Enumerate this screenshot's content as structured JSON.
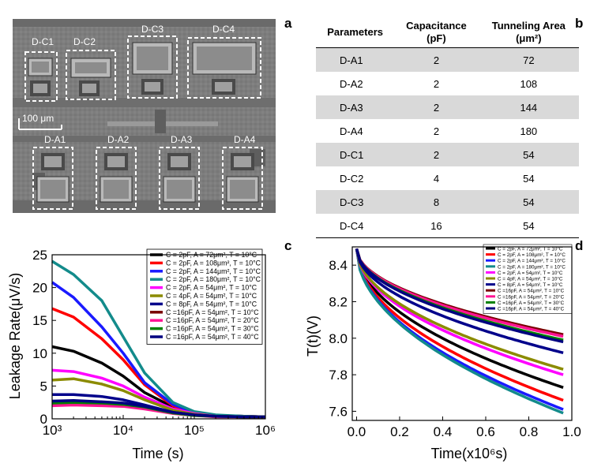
{
  "panels": {
    "a": "a",
    "b": "b",
    "c": "c",
    "d": "d"
  },
  "micrograph": {
    "scale_bar": "100 μm",
    "top_devices": [
      "D-C1",
      "D-C2",
      "D-C3",
      "D-C4"
    ],
    "bottom_devices": [
      "D-A1",
      "D-A2",
      "D-A3",
      "D-A4"
    ]
  },
  "table": {
    "headers": {
      "param": "Parameters",
      "cap_l1": "Capacitance",
      "cap_l2": "(pF)",
      "area_l1": "Tunneling Area",
      "area_l2": "(μm²)"
    },
    "rows": [
      [
        "D-A1",
        "2",
        "72"
      ],
      [
        "D-A2",
        "2",
        "108"
      ],
      [
        "D-A3",
        "2",
        "144"
      ],
      [
        "D-A4",
        "2",
        "180"
      ],
      [
        "D-C1",
        "2",
        "54"
      ],
      [
        "D-C2",
        "4",
        "54"
      ],
      [
        "D-C3",
        "8",
        "54"
      ],
      [
        "D-C4",
        "16",
        "54"
      ]
    ]
  },
  "series_meta": [
    {
      "label": "C = 2pF, A = 72μm², T = 10°C",
      "color": "#000000"
    },
    {
      "label": "C = 2pF, A = 108μm², T = 10°C",
      "color": "#ff0000"
    },
    {
      "label": "C = 2pF, A = 144μm², T = 10°C",
      "color": "#1a1aff"
    },
    {
      "label": "C = 2pF, A = 180μm², T = 10°C",
      "color": "#138b8b"
    },
    {
      "label": "C = 2pF, A = 54μm², T = 10°C",
      "color": "#ff00ff"
    },
    {
      "label": "C = 4pF, A = 54μm², T = 10°C",
      "color": "#8b8b00"
    },
    {
      "label": "C = 8pF, A = 54μm², T = 10°C",
      "color": "#00008b"
    },
    {
      "label": "C =16pF, A = 54μm², T = 10°C",
      "color": "#7a0000"
    },
    {
      "label": "C =16pF, A = 54μm², T = 20°C",
      "color": "#ff1493"
    },
    {
      "label": "C =16pF, A = 54μm², T = 30°C",
      "color": "#008000"
    },
    {
      "label": "C =16pF, A = 54μm², T = 40°C",
      "color": "#000080"
    }
  ],
  "chart_data": [
    {
      "type": "line",
      "title": "",
      "xlabel": "Time (s)",
      "ylabel": "Leakage Rate(μV/s)",
      "xscale": "log",
      "xlim": [
        1000,
        1000000
      ],
      "ylim": [
        0,
        25
      ],
      "xticks": [
        "10³",
        "10⁴",
        "10⁵",
        "10⁶"
      ],
      "yticks": [
        0,
        5,
        10,
        15,
        20,
        25
      ],
      "legend": "top-right",
      "x": [
        1000,
        2000,
        5000,
        10000,
        20000,
        50000,
        100000,
        200000,
        500000,
        1000000
      ],
      "series": [
        {
          "name": "C = 2pF, A = 72μm², T = 10°C",
          "values": [
            11,
            10.3,
            8.5,
            6.5,
            4.0,
            1.8,
            0.9,
            0.5,
            0.4,
            0.3
          ]
        },
        {
          "name": "C = 2pF, A = 108μm², T = 10°C",
          "values": [
            16.8,
            15.5,
            12.2,
            9.0,
            5.2,
            2.0,
            1.0,
            0.5,
            0.4,
            0.3
          ]
        },
        {
          "name": "C = 2pF, A = 144μm², T = 10°C",
          "values": [
            20.8,
            18.5,
            14.0,
            10.0,
            5.5,
            2.2,
            1.0,
            0.5,
            0.4,
            0.3
          ]
        },
        {
          "name": "C = 2pF, A = 180μm², T = 10°C",
          "values": [
            24.0,
            22.0,
            18.0,
            12.5,
            7.0,
            2.5,
            1.1,
            0.6,
            0.4,
            0.3
          ]
        },
        {
          "name": "C = 2pF, A = 54μm², T = 10°C",
          "values": [
            7.4,
            7.2,
            6.2,
            5.0,
            3.3,
            1.5,
            0.8,
            0.4,
            0.3,
            0.3
          ]
        },
        {
          "name": "C = 4pF, A = 54μm², T = 10°C",
          "values": [
            5.9,
            6.1,
            5.3,
            4.3,
            2.9,
            1.3,
            0.7,
            0.4,
            0.3,
            0.3
          ]
        },
        {
          "name": "C = 8pF, A = 54μm², T = 10°C",
          "values": [
            3.7,
            3.7,
            3.4,
            2.9,
            2.1,
            1.0,
            0.6,
            0.4,
            0.3,
            0.3
          ]
        },
        {
          "name": "C =16pF, A = 54μm², T = 10°C",
          "values": [
            2.2,
            2.4,
            2.3,
            2.1,
            1.7,
            0.9,
            0.5,
            0.4,
            0.3,
            0.3
          ]
        },
        {
          "name": "C =16pF, A = 54μm², T = 20°C",
          "values": [
            2.0,
            2.1,
            2.0,
            1.9,
            1.5,
            0.8,
            0.5,
            0.3,
            0.3,
            0.2
          ]
        },
        {
          "name": "C =16pF, A = 54μm², T = 30°C",
          "values": [
            2.4,
            2.5,
            2.4,
            2.2,
            1.8,
            0.9,
            0.5,
            0.4,
            0.3,
            0.3
          ]
        },
        {
          "name": "C =16pF, A = 54μm², T = 40°C",
          "values": [
            2.7,
            2.8,
            2.6,
            2.4,
            1.9,
            1.0,
            0.6,
            0.4,
            0.3,
            0.3
          ]
        }
      ]
    },
    {
      "type": "line",
      "title": "",
      "xlabel": "Time(x10⁶s)",
      "ylabel": "T(t)(V)",
      "xlim": [
        -0.02,
        1.0
      ],
      "ylim": [
        7.55,
        8.5
      ],
      "xticks": [
        "0.0",
        "0.2",
        "0.4",
        "0.6",
        "0.8",
        "1.0"
      ],
      "yticks": [
        "7.6",
        "7.8",
        "8.0",
        "8.2",
        "8.4"
      ],
      "legend": "top-right",
      "x0": 0.0,
      "x1": 0.96,
      "start": 8.49,
      "series": [
        {
          "name": "C = 2pF, A = 72μm², T = 10°C",
          "end": 7.73
        },
        {
          "name": "C = 2pF, A = 108μm², T = 10°C",
          "end": 7.66
        },
        {
          "name": "C = 2pF, A = 144μm², T = 10°C",
          "end": 7.61
        },
        {
          "name": "C = 2pF, A = 180μm², T = 10°C",
          "end": 7.59
        },
        {
          "name": "C = 2pF, A = 54μm², T = 10°C",
          "end": 7.8
        },
        {
          "name": "C = 4pF, A = 54μm², T = 10°C",
          "end": 7.83
        },
        {
          "name": "C = 8pF, A = 54μm², T = 10°C",
          "end": 7.92
        },
        {
          "name": "C =16pF, A = 54μm², T = 10°C",
          "end": 8.02
        },
        {
          "name": "C =16pF, A = 54μm², T = 20°C",
          "end": 8.01
        },
        {
          "name": "C =16pF, A = 54μm², T = 30°C",
          "end": 7.99
        },
        {
          "name": "C =16pF, A = 54μm², T = 40°C",
          "end": 7.98
        }
      ]
    }
  ]
}
